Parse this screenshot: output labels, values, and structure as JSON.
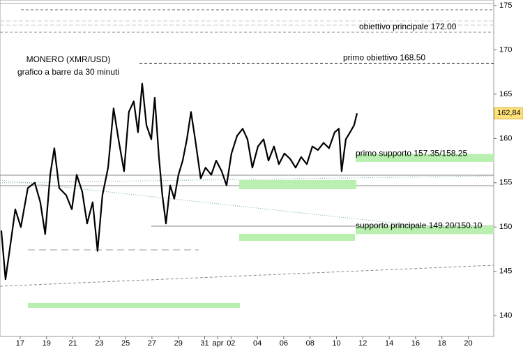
{
  "chart_data": {
    "type": "line",
    "title": "MONERO (XMR/USD)",
    "subtitle": "grafico a barre da 30 minuti",
    "color": "#000000",
    "x": [
      -1.43,
      -1.11,
      -0.74,
      -0.37,
      0.05,
      0.58,
      1.11,
      1.53,
      1.9,
      2.28,
      2.59,
      2.96,
      3.49,
      3.92,
      4.29,
      4.71,
      5.08,
      5.5,
      5.87,
      6.24,
      6.67,
      7.09,
      7.46,
      7.88,
      8.25,
      8.62,
      8.94,
      9.26,
      9.58,
      9.95,
      10.21,
      10.53,
      10.79,
      11.06,
      11.38,
      11.69,
      12.01,
      12.33,
      12.65,
      12.96,
      13.28,
      13.7,
      14.07,
      14.5,
      14.87,
      15.29,
      15.66,
      16.03,
      16.46,
      16.88,
      17.25,
      17.62,
      18.04,
      18.47,
      18.84,
      19.26,
      19.63,
      20.05,
      20.48,
      20.9,
      21.32,
      21.75,
      22.17,
      22.59,
      23.02,
      23.44,
      23.86,
      24.18,
      24.39,
      24.71,
      25.03,
      25.34,
      25.56
    ],
    "values": [
      149.6,
      144.1,
      148.0,
      152.0,
      150.0,
      154.4,
      155.0,
      152.8,
      149.2,
      155.9,
      158.9,
      154.4,
      153.6,
      152.0,
      155.9,
      154.0,
      150.4,
      152.8,
      147.3,
      153.6,
      156.7,
      163.4,
      159.9,
      156.3,
      163.0,
      164.2,
      160.7,
      166.2,
      161.5,
      159.9,
      164.6,
      157.9,
      153.6,
      150.4,
      154.7,
      153.2,
      155.9,
      157.5,
      159.9,
      163.0,
      159.9,
      155.5,
      156.7,
      155.9,
      157.5,
      156.3,
      154.7,
      158.3,
      160.3,
      161.1,
      159.9,
      156.7,
      159.1,
      159.9,
      157.5,
      159.1,
      157.1,
      158.3,
      157.7,
      156.7,
      157.9,
      157.1,
      159.1,
      158.7,
      159.5,
      158.9,
      160.7,
      161.1,
      156.3,
      159.9,
      160.7,
      161.5,
      162.84
    ],
    "last_price": {
      "value": 162.84,
      "label": "162,84"
    },
    "xlim": [
      -1.53,
      35.93
    ],
    "ylim": [
      137.65,
      175.63
    ],
    "xticks": [
      {
        "value": 0,
        "label": "17"
      },
      {
        "value": 2,
        "label": "19"
      },
      {
        "value": 4,
        "label": "21"
      },
      {
        "value": 6,
        "label": "23"
      },
      {
        "value": 8,
        "label": "25"
      },
      {
        "value": 10,
        "label": "27"
      },
      {
        "value": 12,
        "label": "29"
      },
      {
        "value": 14,
        "label": "31"
      },
      {
        "value": 15,
        "label": "apr"
      },
      {
        "value": 16,
        "label": "02"
      },
      {
        "value": 18,
        "label": "04"
      },
      {
        "value": 20,
        "label": "06"
      },
      {
        "value": 22,
        "label": "08"
      },
      {
        "value": 24,
        "label": "10"
      },
      {
        "value": 26,
        "label": "12"
      },
      {
        "value": 28,
        "label": "14"
      },
      {
        "value": 30,
        "label": "16"
      },
      {
        "value": 32,
        "label": "18"
      },
      {
        "value": 34,
        "label": "20"
      }
    ],
    "yticks": [
      140,
      145,
      150,
      155,
      160,
      165,
      170,
      175
    ],
    "targets": [
      {
        "label": "obiettivo principale 172.00",
        "value": 172
      },
      {
        "label": "primo obiettivo 168.50",
        "value": 168.5
      }
    ],
    "supports": [
      {
        "label": "primo supporto 157.35/158.25",
        "low": 157.35,
        "high": 158.25
      },
      {
        "label": "supporto principale 149.20/150.10",
        "low": 149.2,
        "high": 150.1
      }
    ]
  }
}
